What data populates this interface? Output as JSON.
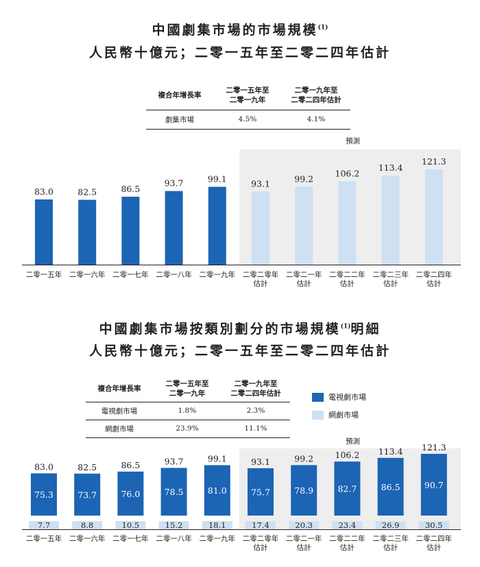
{
  "chart1": {
    "title_line1": "中國劇集市場的市場規模",
    "title_note": "(1)",
    "title_line2": "人民幣十億元；二零一五年至二零二四年估計",
    "cagr_table": {
      "header": [
        "複合年增長率",
        "二零一五年至\n二零一九年",
        "二零一九年至\n二零二四年估計"
      ],
      "rows": [
        [
          "劇集市場",
          "4.5%",
          "4.1%"
        ]
      ]
    }
  },
  "chart2": {
    "title_line1": "中國劇集市場按類別劃分的市場規模",
    "title_note": "(1)",
    "title_line1_suffix": "明細",
    "title_line2": "人民幣十億元；二零一五年至二零二四年估計",
    "cagr_table": {
      "header": [
        "複合年增長率",
        "二零一五年至\n二零一九年",
        "二零一九年至\n二零二四年估計"
      ],
      "rows": [
        [
          "電視劇市場",
          "1.8%",
          "2.3%"
        ],
        [
          "網劇市場",
          "23.9%",
          "11.1%"
        ]
      ]
    },
    "legend": [
      {
        "label": "電視劇市場",
        "color": "#1c64b4"
      },
      {
        "label": "網劇市場",
        "color": "#cfe0f3"
      }
    ]
  },
  "chart_data": [
    {
      "type": "bar",
      "categories": [
        "二零一五年",
        "二零一六年",
        "二零一七年",
        "二零一八年",
        "二零一九年",
        "二零二零年\n估計",
        "二零二一年\n估計",
        "二零二二年\n估計",
        "二零二三年\n估計",
        "二零二四年\n估計"
      ],
      "values": [
        83.0,
        82.5,
        86.5,
        93.7,
        99.1,
        93.1,
        99.2,
        106.2,
        113.4,
        121.3
      ],
      "value_labels": [
        "83.0",
        "82.5",
        "86.5",
        "93.7",
        "99.1",
        "93.1",
        "99.2",
        "106.2",
        "113.4",
        "121.3"
      ],
      "forecast_from_index": 5,
      "forecast_label": "預測",
      "ylim": [
        0,
        125
      ],
      "colors": {
        "actual": "#1c64b4",
        "forecast": "#cfe0f3",
        "forecast_bg": "#eeeeef"
      }
    },
    {
      "type": "bar",
      "stacked": true,
      "categories": [
        "二零一五年",
        "二零一六年",
        "二零一七年",
        "二零一八年",
        "二零一九年",
        "二零二零年\n估計",
        "二零二一年\n估計",
        "二零二二年\n估計",
        "二零二三年\n估計",
        "二零二四年\n估計"
      ],
      "series": [
        {
          "name": "網劇市場",
          "values": [
            7.7,
            8.8,
            10.5,
            15.2,
            18.1,
            17.4,
            20.3,
            23.4,
            26.9,
            30.5
          ],
          "labels": [
            "7.7",
            "8.8",
            "10.5",
            "15.2",
            "18.1",
            "17.4",
            "20.3",
            "23.4",
            "26.9",
            "30.5"
          ],
          "color": "#cfe0f3"
        },
        {
          "name": "電視劇市場",
          "values": [
            75.3,
            73.7,
            76.0,
            78.5,
            81.0,
            75.7,
            78.9,
            82.7,
            86.5,
            90.7
          ],
          "labels": [
            "75.3",
            "73.7",
            "76.0",
            "78.5",
            "81.0",
            "75.7",
            "78.9",
            "82.7",
            "86.5",
            "90.7"
          ],
          "color": "#1c64b4"
        }
      ],
      "totals": [
        "83.0",
        "82.5",
        "86.5",
        "93.7",
        "99.1",
        "93.1",
        "99.2",
        "106.2",
        "113.4",
        "121.3"
      ],
      "total_values": [
        83.0,
        82.5,
        86.5,
        93.7,
        99.1,
        93.1,
        99.2,
        106.2,
        113.4,
        121.3
      ],
      "forecast_from_index": 5,
      "forecast_label": "預測",
      "colors": {
        "forecast_bg": "#eeeeef"
      }
    }
  ]
}
